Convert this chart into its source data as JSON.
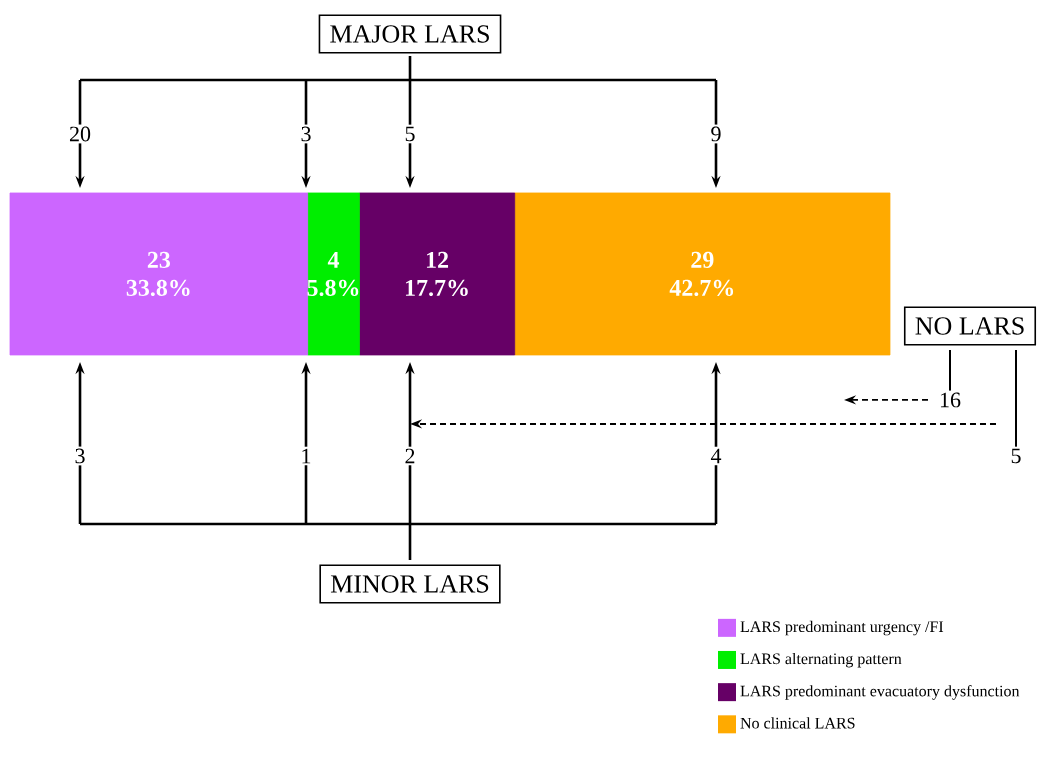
{
  "chart_data": {
    "type": "bar",
    "orientation": "horizontal",
    "stacked": true,
    "categories": [
      null
    ],
    "tick_labels": false,
    "legend": "bottom right",
    "series": [
      {
        "name": "LARS predominant urgency /FI",
        "color": "#cc66ff",
        "values": [
          23
        ],
        "value_labels": [
          "23 33.8%"
        ]
      },
      {
        "name": "LARS alternating pattern",
        "color": "#00ee00",
        "values": [
          4
        ],
        "value_labels": [
          "4 5.8%"
        ]
      },
      {
        "name": "LARS predominant evacuatory dysfunction",
        "color": "#660066",
        "values": [
          12
        ],
        "value_labels": [
          "12 17.7%"
        ]
      },
      {
        "name": "No clinical LARS",
        "color": "#ffaa00",
        "values": [
          29
        ],
        "value_labels": [
          "29 42.7%"
        ]
      }
    ],
    "annotations": [
      "MAJOR LARS",
      "20",
      "3",
      "5",
      "9",
      "MINOR LARS",
      "3",
      "1",
      "2",
      "4",
      "NO LARS",
      "16",
      "5"
    ]
  }
}
